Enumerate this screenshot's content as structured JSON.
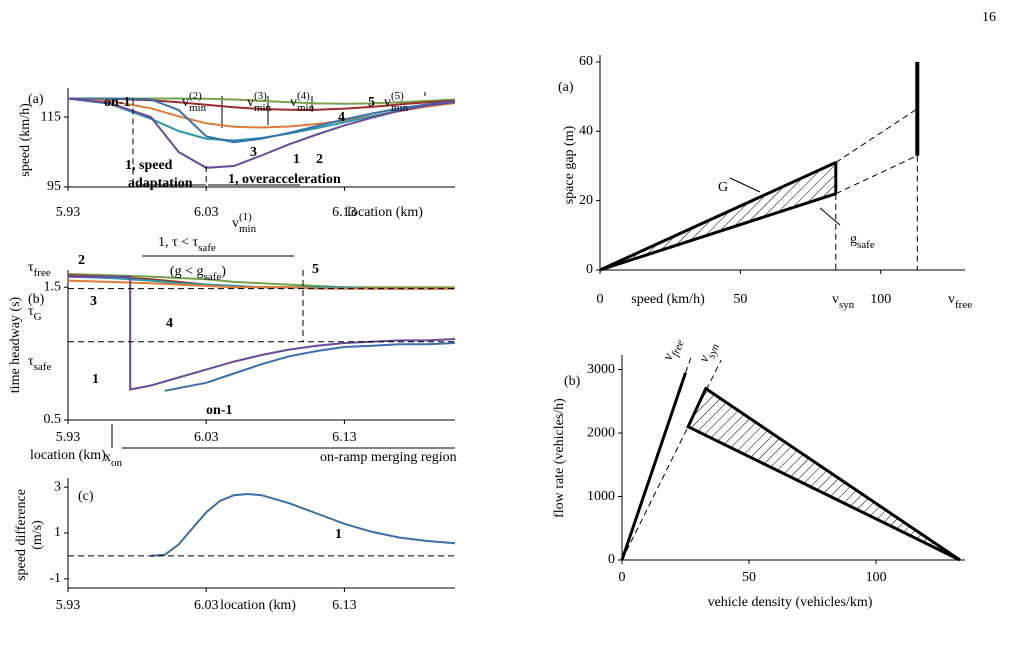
{
  "page_number": "16",
  "chart_data": [
    {
      "type": "line",
      "ylabel": "speed (km/h)",
      "xlabel": "location (km)",
      "xlim": [
        5.93,
        6.21
      ],
      "ylim": [
        95,
        123.3
      ],
      "xticks": [
        5.93,
        6.03,
        6.13
      ],
      "yticks": [
        95,
        115
      ],
      "x": [
        5.93,
        5.96,
        5.99,
        6.01,
        6.03,
        6.05,
        6.07,
        6.09,
        6.11,
        6.13,
        6.15,
        6.17,
        6.19,
        6.21
      ],
      "series": [
        {
          "color": "#77a24a",
          "values": [
            120.3,
            120.3,
            120.3,
            120.3,
            120.2,
            120,
            119.6,
            119.2,
            118.9,
            118.8,
            118.9,
            119.2,
            119.6,
            120
          ]
        },
        {
          "color": "#9b2d2d",
          "values": [
            120.3,
            120.2,
            119.8,
            119.2,
            118.5,
            117.8,
            117.3,
            117.1,
            117.1,
            117.4,
            117.9,
            118.6,
            119.2,
            119.7
          ]
        },
        {
          "color": "#e07b39",
          "values": [
            120.3,
            119.6,
            117.5,
            115.2,
            113.2,
            112.2,
            112,
            112.3,
            113,
            114,
            115.3,
            116.7,
            118,
            119
          ]
        },
        {
          "color": "#2a98a8",
          "values": [
            120.3,
            118.8,
            114.5,
            111,
            108.8,
            108.3,
            109,
            110.3,
            111.8,
            113.5,
            115.2,
            116.9,
            118.3,
            119.3
          ]
        },
        {
          "color": "#3a6fa8",
          "values": [
            120.3,
            120.3,
            120,
            117,
            109.5,
            107.8,
            108.8,
            110.5,
            112.4,
            114.3,
            116,
            117.5,
            118.6,
            119.5
          ]
        },
        {
          "color": "#6a4a9a",
          "values": [
            120.3,
            119,
            115,
            105,
            100.5,
            101,
            104,
            107.2,
            110,
            112.6,
            114.8,
            116.8,
            118.3,
            119.3
          ]
        },
        {
          "color": "#000000",
          "dash": true,
          "x": [
            5.977,
            5.977
          ],
          "values": [
            120.3,
            95
          ]
        },
        {
          "color": "#000000",
          "dash": true,
          "x": [
            6.03,
            6.03
          ],
          "values": [
            101,
            95
          ]
        }
      ],
      "annotations": [
        {
          "parts": [
            "(a)"
          ]
        },
        {
          "parts": [
            "on-1"
          ],
          "bold": true
        },
        {
          "parts": [
            "v",
            {
              "sup": "(2)"
            },
            {
              "sub": "min"
            }
          ]
        },
        {
          "parts": [
            "v",
            {
              "sup": "(3)"
            },
            {
              "sub": "min"
            }
          ]
        },
        {
          "parts": [
            "v",
            {
              "sup": "(4)"
            },
            {
              "sub": "min"
            }
          ]
        },
        {
          "parts": [
            "5"
          ],
          "bold": true
        },
        {
          "parts": [
            "v",
            {
              "sup": "(5)"
            },
            {
              "sub": "min"
            }
          ]
        },
        {
          "parts": [
            "4"
          ],
          "bold": true
        },
        {
          "parts": [
            "3"
          ],
          "bold": true
        },
        {
          "parts": [
            "1"
          ],
          "bold": true
        },
        {
          "parts": [
            "2"
          ],
          "bold": true
        },
        {
          "parts": [
            "1, speed"
          ],
          "bold": true
        },
        {
          "parts": [
            "adaptation"
          ],
          "bold": true
        },
        {
          "parts": [
            "1, overacceleration"
          ],
          "bold": true
        },
        {
          "parts": [
            "v",
            {
              "sup": "(1)"
            },
            {
              "sub": "min"
            }
          ]
        }
      ]
    },
    {
      "type": "line",
      "ylabel": "time headway (s)",
      "xlabel": "location (km)",
      "xlim": [
        5.93,
        6.21
      ],
      "ylim": [
        0.5,
        1.63
      ],
      "xticks": [
        5.93,
        6.03,
        6.13
      ],
      "yticks": [
        0.5,
        1.5
      ],
      "x": [
        5.93,
        5.96,
        5.99,
        6.01,
        6.03,
        6.05,
        6.07,
        6.09,
        6.11,
        6.13,
        6.15,
        6.17,
        6.19,
        6.21
      ],
      "series": [
        {
          "color": "#77a24a",
          "values": [
            1.6,
            1.59,
            1.58,
            1.57,
            1.56,
            1.54,
            1.53,
            1.52,
            1.51,
            1.5,
            1.5,
            1.5,
            1.5,
            1.5
          ]
        },
        {
          "color": "#9b2d2d",
          "values": [
            1.59,
            1.58,
            1.56,
            1.54,
            1.52,
            1.51,
            1.5,
            1.5,
            1.5,
            1.49,
            1.49,
            1.49,
            1.49,
            1.49
          ]
        },
        {
          "color": "#2a98a8",
          "values": [
            1.58,
            1.57,
            1.55,
            1.53,
            1.52,
            1.51,
            1.5,
            1.5,
            1.5,
            1.5,
            1.49,
            1.49,
            1.49,
            1.49
          ]
        },
        {
          "color": "#e07b39",
          "values": [
            1.55,
            1.54,
            1.53,
            1.52,
            1.51,
            1.5,
            1.5,
            1.5,
            1.49,
            1.49,
            1.49,
            1.49,
            1.49,
            1.49
          ]
        },
        {
          "color": "#6a4a9a",
          "x": [
            5.93,
            5.975,
            5.975,
            5.99,
            6.01,
            6.03,
            6.05,
            6.07,
            6.09,
            6.11,
            6.13,
            6.15,
            6.17,
            6.19,
            6.21
          ],
          "values": [
            1.58,
            1.58,
            0.73,
            0.76,
            0.82,
            0.88,
            0.94,
            0.99,
            1.03,
            1.06,
            1.08,
            1.09,
            1.1,
            1.1,
            1.11
          ]
        },
        {
          "color": "#3a6fa8",
          "x": [
            6.0,
            6.03,
            6.05,
            6.07,
            6.09,
            6.11,
            6.13,
            6.15,
            6.17,
            6.19,
            6.21
          ],
          "values": [
            0.72,
            0.78,
            0.85,
            0.92,
            0.98,
            1.02,
            1.05,
            1.06,
            1.07,
            1.07,
            1.08
          ]
        },
        {
          "color": "#000000",
          "dash": true,
          "x": [
            5.93,
            6.21
          ],
          "values": [
            1.49,
            1.49
          ]
        },
        {
          "color": "#000000",
          "dash": true,
          "x": [
            5.93,
            6.21
          ],
          "values": [
            1.09,
            1.09
          ]
        },
        {
          "color": "#000000",
          "dash": true,
          "x": [
            6.1,
            6.1
          ],
          "values": [
            1.63,
            1.09
          ]
        }
      ],
      "annotations": [
        {
          "parts": [
            "(b)"
          ]
        },
        {
          "parts": [
            "τ",
            {
              "sub": "free"
            }
          ]
        },
        {
          "parts": [
            "2"
          ],
          "bold": true
        },
        {
          "parts": [
            "τ",
            {
              "sub": "G"
            }
          ]
        },
        {
          "parts": [
            "3"
          ],
          "bold": true
        },
        {
          "parts": [
            "4"
          ],
          "bold": true
        },
        {
          "parts": [
            "5"
          ],
          "bold": true
        },
        {
          "parts": [
            "1, τ < τ",
            {
              "sub": "safe"
            }
          ]
        },
        {
          "parts": [
            "(g < g",
            {
              "sub": "safe"
            },
            ")"
          ]
        },
        {
          "parts": [
            "τ",
            {
              "sub": "safe"
            }
          ]
        },
        {
          "parts": [
            "1"
          ],
          "bold": true
        },
        {
          "parts": [
            "on-1"
          ],
          "bold": true
        },
        {
          "parts": [
            "x",
            {
              "sub": "on"
            }
          ]
        },
        {
          "parts": [
            "on-ramp merging region"
          ]
        }
      ]
    },
    {
      "type": "line",
      "ylabel": [
        "speed difference",
        "(m/s)"
      ],
      "xlabel": "location (km)",
      "xlim": [
        5.93,
        6.21
      ],
      "ylim": [
        -1.4,
        3.4
      ],
      "xticks": [
        5.93,
        6.03,
        6.13
      ],
      "yticks": [
        -1,
        1,
        3
      ],
      "x": [
        5.99,
        6.0,
        6.01,
        6.02,
        6.03,
        6.04,
        6.05,
        6.06,
        6.07,
        6.09,
        6.11,
        6.13,
        6.15,
        6.17,
        6.19,
        6.21
      ],
      "series": [
        {
          "color": "#3a6fa8",
          "values": [
            0,
            0.05,
            0.5,
            1.2,
            1.9,
            2.4,
            2.65,
            2.7,
            2.65,
            2.3,
            1.85,
            1.4,
            1.05,
            0.8,
            0.65,
            0.55
          ]
        },
        {
          "color": "#000000",
          "dash": true,
          "x": [
            5.93,
            6.21
          ],
          "values": [
            0,
            0
          ]
        }
      ],
      "annotations": [
        {
          "parts": [
            "(c)"
          ]
        },
        {
          "parts": [
            "1"
          ],
          "bold": true
        }
      ]
    },
    {
      "type": "line",
      "ylabel": "space gap (m)",
      "xlabel": "speed (km/h)",
      "xlim": [
        0,
        130
      ],
      "ylim": [
        0,
        62
      ],
      "xticks": [
        0,
        50,
        100
      ],
      "yticks": [
        0,
        20,
        40,
        60
      ],
      "series": [
        {
          "color": "#000000",
          "fill": "hatch",
          "x": [
            0,
            84,
            84
          ],
          "values": [
            0,
            31,
            22
          ]
        },
        {
          "color": "#000000",
          "width": 3,
          "x": [
            0,
            84
          ],
          "values": [
            0,
            31
          ]
        },
        {
          "color": "#000000",
          "width": 3,
          "x": [
            0,
            84
          ],
          "values": [
            0,
            22
          ]
        },
        {
          "color": "#000000",
          "width": 3,
          "x": [
            84,
            84
          ],
          "values": [
            22,
            31
          ]
        },
        {
          "color": "#000000",
          "width": 4,
          "x": [
            113,
            113
          ],
          "values": [
            33,
            60
          ]
        },
        {
          "color": "#000000",
          "dash": true,
          "x": [
            84,
            113
          ],
          "values": [
            31,
            46.5
          ]
        },
        {
          "color": "#000000",
          "dash": true,
          "x": [
            84,
            113
          ],
          "values": [
            22,
            33
          ]
        },
        {
          "color": "#000000",
          "dash": true,
          "x": [
            84,
            84
          ],
          "values": [
            22,
            0
          ]
        },
        {
          "color": "#000000",
          "dash": true,
          "x": [
            113,
            113
          ],
          "values": [
            33,
            0
          ]
        }
      ],
      "annotations": [
        {
          "parts": [
            "(a)"
          ]
        },
        {
          "parts": [
            "G"
          ]
        },
        {
          "parts": [
            "g",
            {
              "sub": "safe"
            }
          ]
        },
        {
          "parts": [
            "v",
            {
              "sub": "syn"
            }
          ]
        },
        {
          "parts": [
            "v",
            {
              "sub": "free"
            }
          ]
        }
      ]
    },
    {
      "type": "line",
      "ylabel": "flow rate (vehicles/h)",
      "xlabel": "vehicle density (vehicles/km)",
      "xlim": [
        0,
        135
      ],
      "ylim": [
        0,
        3230
      ],
      "xticks": [
        0,
        50,
        100
      ],
      "yticks": [
        0,
        1000,
        2000,
        3000
      ],
      "series": [
        {
          "color": "#000000",
          "fill": "hatch",
          "width": 3,
          "x": [
            26,
            33,
            133,
            26
          ],
          "values": [
            2100,
            2700,
            0,
            2100
          ]
        },
        {
          "color": "#000000",
          "width": 3,
          "x": [
            0,
            25
          ],
          "values": [
            0,
            2950
          ]
        },
        {
          "color": "#000000",
          "dash": true,
          "x": [
            25,
            27.5
          ],
          "values": [
            2950,
            3230
          ]
        },
        {
          "color": "#000000",
          "dash": true,
          "x": [
            0,
            39
          ],
          "values": [
            0,
            3150
          ]
        }
      ],
      "annotations": [
        {
          "parts": [
            "(b)"
          ]
        },
        {
          "parts": [
            "v",
            {
              "sub": "free"
            }
          ]
        },
        {
          "parts": [
            "v",
            {
              "sub": "syn"
            }
          ]
        }
      ]
    }
  ]
}
